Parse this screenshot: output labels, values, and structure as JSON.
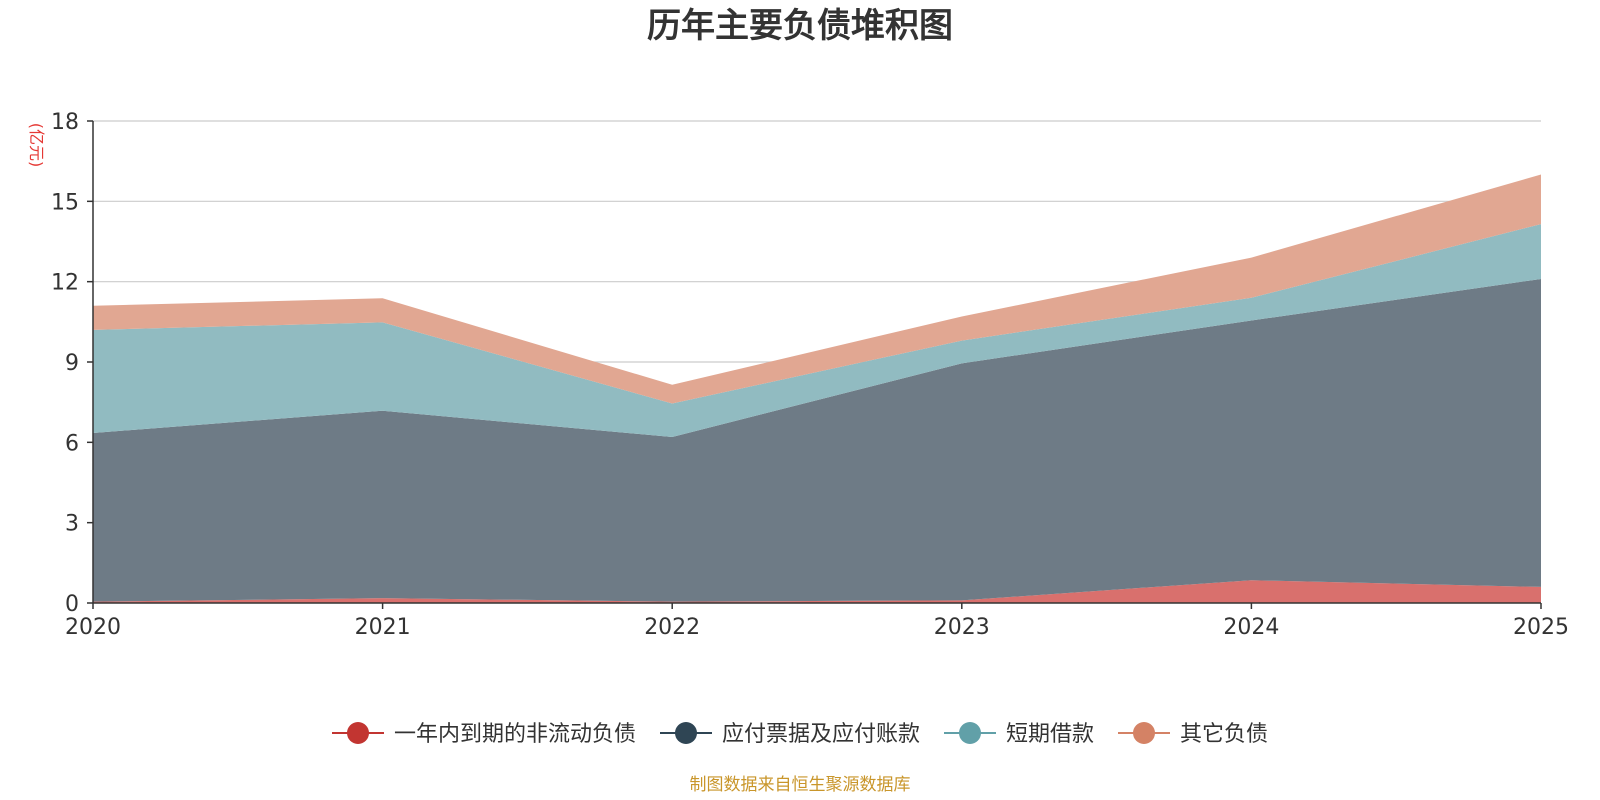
{
  "chart_data": {
    "type": "area",
    "stacked": true,
    "title": "历年主要负债堆积图",
    "ylabel": "(亿元)",
    "xlabel": "",
    "categories": [
      "2020",
      "2021",
      "2022",
      "2023",
      "2024",
      "2025"
    ],
    "ylim": [
      0,
      18
    ],
    "yticks": [
      0,
      3,
      6,
      9,
      12,
      15,
      18
    ],
    "grid": true,
    "legend_position": "bottom",
    "series": [
      {
        "name": "一年内到期的非流动负债",
        "color": "#c23531",
        "fill": "#d9706d",
        "values": [
          0.05,
          0.18,
          0.05,
          0.1,
          0.85,
          0.6
        ]
      },
      {
        "name": "应付票据及应付账款",
        "color": "#2f4554",
        "fill": "#6e7b86",
        "values": [
          6.3,
          7.0,
          6.15,
          8.85,
          9.7,
          11.5
        ]
      },
      {
        "name": "短期借款",
        "color": "#61a0a8",
        "fill": "#91bbc1",
        "values": [
          3.85,
          3.3,
          1.25,
          0.85,
          0.85,
          2.05
        ]
      },
      {
        "name": "其它负债",
        "color": "#d48265",
        "fill": "#e1a792",
        "values": [
          0.9,
          0.9,
          0.7,
          0.9,
          1.5,
          1.85
        ]
      }
    ],
    "source_note": "制图数据来自恒生聚源数据库",
    "colors": {
      "title": "#333333",
      "unit": "#e53935",
      "source": "#c9962b",
      "grid": "#cccccc",
      "axis": "#333333"
    }
  }
}
